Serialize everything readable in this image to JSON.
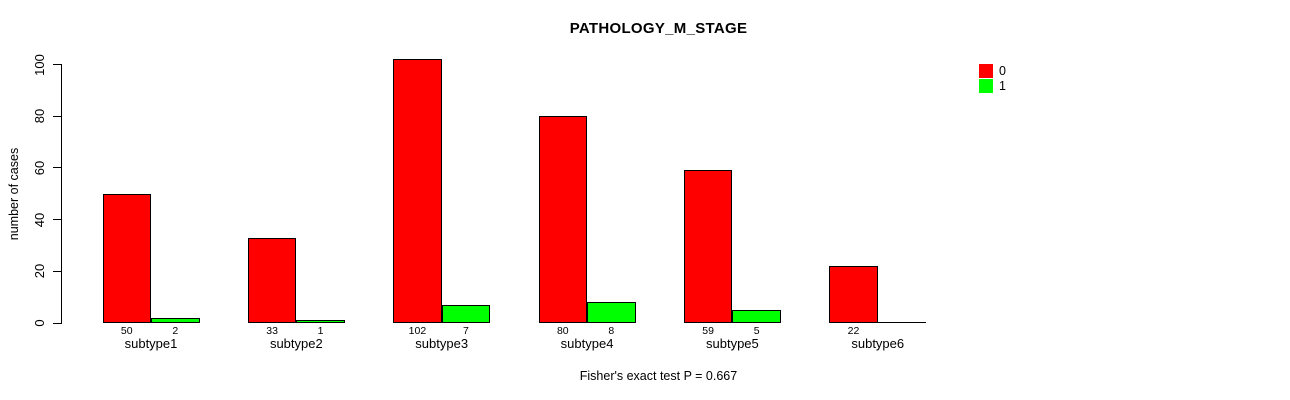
{
  "chart_data": {
    "type": "bar",
    "title": "PATHOLOGY_M_STAGE",
    "ylabel": "number of cases",
    "xlabel": "",
    "categories": [
      "subtype1",
      "subtype2",
      "subtype3",
      "subtype4",
      "subtype5",
      "subtype6"
    ],
    "series": [
      {
        "name": "0",
        "color": "#ff0000",
        "values": [
          50,
          33,
          102,
          80,
          59,
          22
        ],
        "bar_labels": [
          "50",
          "33",
          "102",
          "80",
          "59",
          "22"
        ]
      },
      {
        "name": "1",
        "color": "#00ff00",
        "values": [
          2,
          1,
          7,
          8,
          5,
          0
        ],
        "bar_labels": [
          "2",
          "1",
          "7",
          "8",
          "5",
          ""
        ]
      }
    ],
    "y_ticks": [
      0,
      20,
      40,
      60,
      80,
      100
    ],
    "ylim": [
      0,
      100
    ],
    "grid": false,
    "legend_position": "top-right",
    "footer": "Fisher's exact test P = 0.667"
  }
}
